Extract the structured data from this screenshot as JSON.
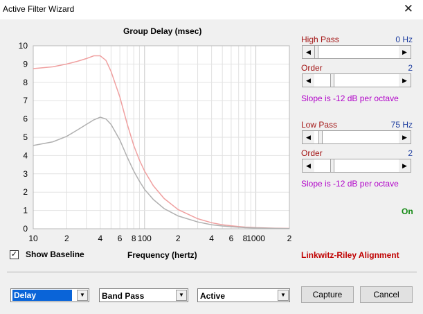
{
  "window": {
    "title": "Active Filter Wizard",
    "close_glyph": "✕"
  },
  "chart_data": {
    "type": "line",
    "title": "Group Delay (msec)",
    "xlabel": "Frequency (hertz)",
    "ylabel": "",
    "x_scale": "log",
    "xlim": [
      10,
      2000
    ],
    "ylim": [
      0,
      10
    ],
    "grid": true,
    "x_tick_labels": [
      "10",
      "2",
      "4",
      "6",
      "8",
      "100",
      "2",
      "4",
      "6",
      "8",
      "1000",
      "2"
    ],
    "x_tick_values": [
      10,
      20,
      40,
      60,
      80,
      100,
      200,
      400,
      600,
      800,
      1000,
      2000
    ],
    "y_ticks": [
      0,
      1,
      2,
      3,
      4,
      5,
      6,
      7,
      8,
      9,
      10
    ],
    "series": [
      {
        "color": "#f0a0a0",
        "points": [
          [
            10,
            8.75
          ],
          [
            15,
            8.85
          ],
          [
            20,
            9.0
          ],
          [
            25,
            9.15
          ],
          [
            30,
            9.3
          ],
          [
            35,
            9.45
          ],
          [
            40,
            9.45
          ],
          [
            45,
            9.2
          ],
          [
            50,
            8.6
          ],
          [
            60,
            7.2
          ],
          [
            70,
            5.7
          ],
          [
            80,
            4.55
          ],
          [
            90,
            3.75
          ],
          [
            100,
            3.15
          ],
          [
            120,
            2.35
          ],
          [
            150,
            1.65
          ],
          [
            200,
            1.05
          ],
          [
            300,
            0.55
          ],
          [
            400,
            0.33
          ],
          [
            500,
            0.22
          ],
          [
            600,
            0.16
          ],
          [
            800,
            0.09
          ],
          [
            1000,
            0.06
          ],
          [
            1500,
            0.03
          ],
          [
            2000,
            0.02
          ]
        ]
      },
      {
        "color": "#b0b0b0",
        "points": [
          [
            10,
            4.55
          ],
          [
            15,
            4.75
          ],
          [
            20,
            5.05
          ],
          [
            25,
            5.4
          ],
          [
            30,
            5.7
          ],
          [
            35,
            5.95
          ],
          [
            40,
            6.1
          ],
          [
            45,
            6.0
          ],
          [
            50,
            5.7
          ],
          [
            60,
            4.85
          ],
          [
            70,
            3.9
          ],
          [
            80,
            3.15
          ],
          [
            90,
            2.6
          ],
          [
            100,
            2.15
          ],
          [
            120,
            1.6
          ],
          [
            150,
            1.1
          ],
          [
            200,
            0.7
          ],
          [
            300,
            0.37
          ],
          [
            400,
            0.22
          ],
          [
            500,
            0.15
          ],
          [
            600,
            0.11
          ],
          [
            800,
            0.06
          ],
          [
            1000,
            0.04
          ],
          [
            1500,
            0.02
          ],
          [
            2000,
            0.01
          ]
        ]
      }
    ]
  },
  "show_baseline": {
    "label": "Show Baseline",
    "checked": true,
    "check_glyph": "✓"
  },
  "high_pass": {
    "label": "High Pass",
    "value": "0 Hz",
    "slider_fraction": 0.0,
    "order_label": "Order",
    "order_value": "2",
    "order_fraction": 0.2,
    "slope": "Slope is -12 dB per octave"
  },
  "low_pass": {
    "label": "Low Pass",
    "value": "75 Hz",
    "slider_fraction": 0.05,
    "order_label": "Order",
    "order_value": "2",
    "order_fraction": 0.2,
    "slope": "Slope is -12 dB per octave"
  },
  "status": {
    "on": "On",
    "alignment": "Linkwitz-Riley Alignment"
  },
  "bottom": {
    "mode_select": "Delay",
    "filter_type_select": "Band Pass",
    "filter_kind_select": "Active",
    "capture_label": "Capture",
    "cancel_label": "Cancel"
  },
  "icons": {
    "arrow_left": "◀",
    "arrow_right": "▶",
    "dropdown": "▼"
  },
  "colors": {
    "label_red": "#a31515",
    "value_blue": "#1f3fa0",
    "slope_purple": "#b000c8",
    "on_green": "#118811",
    "alignment_red": "#c00000"
  }
}
